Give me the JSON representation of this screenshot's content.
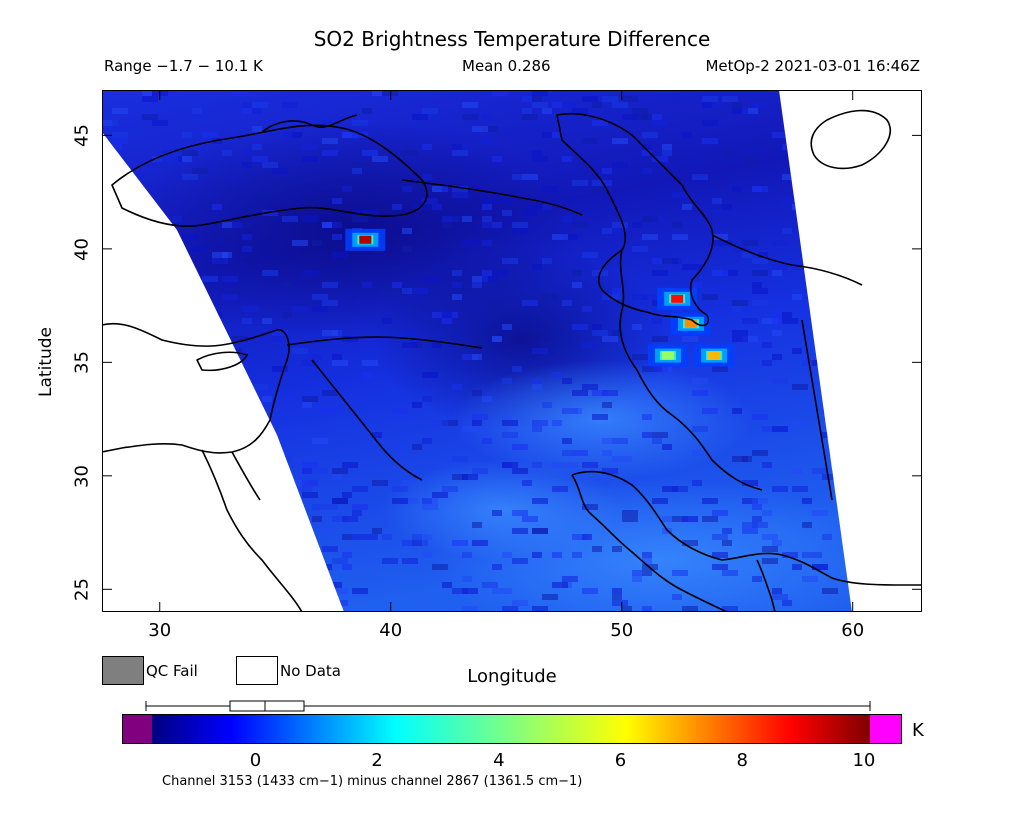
{
  "title": "SO2 Brightness Temperature Difference",
  "subtitle": {
    "range": "Range −1.7 − 10.1 K",
    "mean": "Mean 0.286",
    "satellite": "MetOp-2 2021-03-01 16:46Z"
  },
  "axes": {
    "xlabel": "Longitude",
    "ylabel": "Latitude",
    "x_ticks": [
      "30",
      "40",
      "50",
      "60"
    ],
    "y_ticks": [
      "25",
      "30",
      "35",
      "40",
      "45"
    ],
    "lon_range": [
      27.5,
      63.0
    ],
    "lat_range": [
      24.0,
      47.0
    ]
  },
  "legend": {
    "qc_fail": "QC Fail",
    "no_data": "No Data",
    "qc_fail_color": "#7f7f7f",
    "no_data_color": "#ffffff"
  },
  "colorbar": {
    "unit": "K",
    "ticks": [
      "0",
      "2",
      "4",
      "6",
      "8",
      "10"
    ],
    "range": [
      -1.7,
      10.1
    ],
    "underflow_color": "#800080",
    "overflow_color": "#ff00ff"
  },
  "footnote": "Channel 3153 (1433 cm−1) minus channel 2867 (1361.5 cm−1)",
  "chart_data": {
    "type": "heatmap",
    "title": "SO2 Brightness Temperature Difference",
    "xlabel": "Longitude",
    "ylabel": "Latitude",
    "xlim": [
      27.5,
      63.0
    ],
    "ylim": [
      24.0,
      47.0
    ],
    "mean": 0.286,
    "value_range": [
      -1.7,
      10.1
    ],
    "swath_polygon_lonlat": [
      [
        27.5,
        45.8
      ],
      [
        33.5,
        40.0
      ],
      [
        38.0,
        24.0
      ],
      [
        60.0,
        24.0
      ],
      [
        56.5,
        47.0
      ],
      [
        27.5,
        47.0
      ]
    ],
    "hotspots": [
      {
        "lon": 52.4,
        "lat": 37.8,
        "value": 8.5
      },
      {
        "lon": 53.0,
        "lat": 36.7,
        "value": 7.0
      },
      {
        "lon": 54.0,
        "lat": 35.3,
        "value": 6.5
      },
      {
        "lon": 52.0,
        "lat": 35.3,
        "value": 4.5
      },
      {
        "lon": 38.9,
        "lat": 40.4,
        "value": 9.5
      }
    ]
  }
}
